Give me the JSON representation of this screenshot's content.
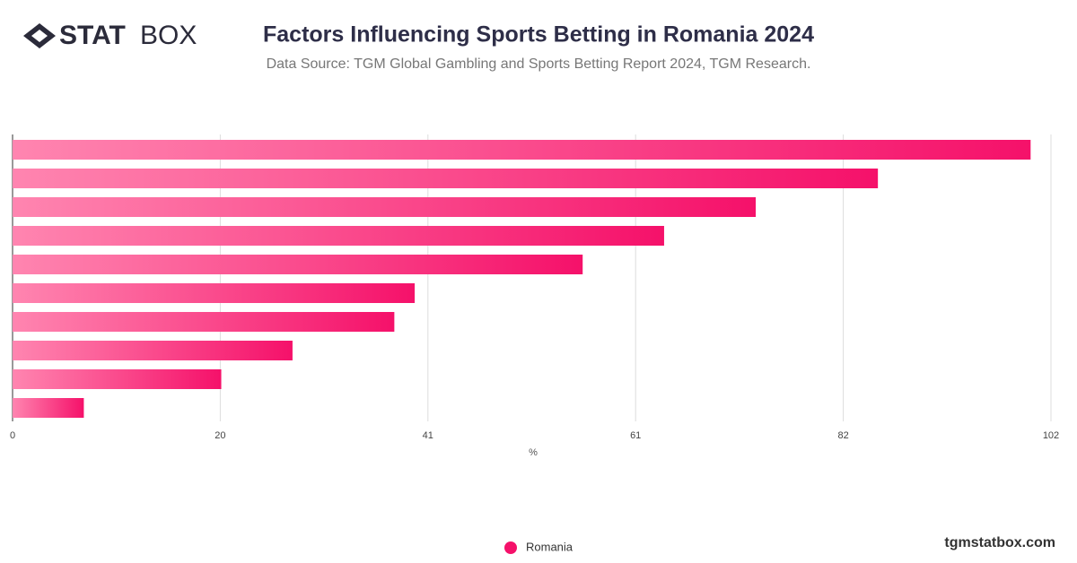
{
  "brand": {
    "bold": "STAT",
    "light": "BOX"
  },
  "footer": "tgmstatbox.com",
  "chart_data": {
    "type": "bar",
    "orientation": "horizontal",
    "title": "Factors Influencing Sports Betting in Romania 2024",
    "subtitle": "Data Source: TGM Global Gambling and Sports Betting Report 2024, TGM Research.",
    "x_label": "%",
    "categories": [
      null,
      null,
      null,
      null,
      null,
      null,
      null,
      null,
      null,
      null
    ],
    "series": [
      {
        "name": "Romania",
        "color": "#f5116a",
        "values": [
          100,
          85,
          73,
          64,
          56,
          39.5,
          37.5,
          27.5,
          20.5,
          7
        ]
      }
    ],
    "xlim": [
      0,
      102
    ],
    "xticks": [
      0,
      {
        "value": 20.4,
        "label": "20"
      },
      {
        "value": 40.8,
        "label": "41"
      },
      {
        "value": 61.2,
        "label": "61"
      },
      {
        "value": 81.6,
        "label": "82"
      },
      102
    ],
    "grid": true,
    "legend": "bottom"
  }
}
